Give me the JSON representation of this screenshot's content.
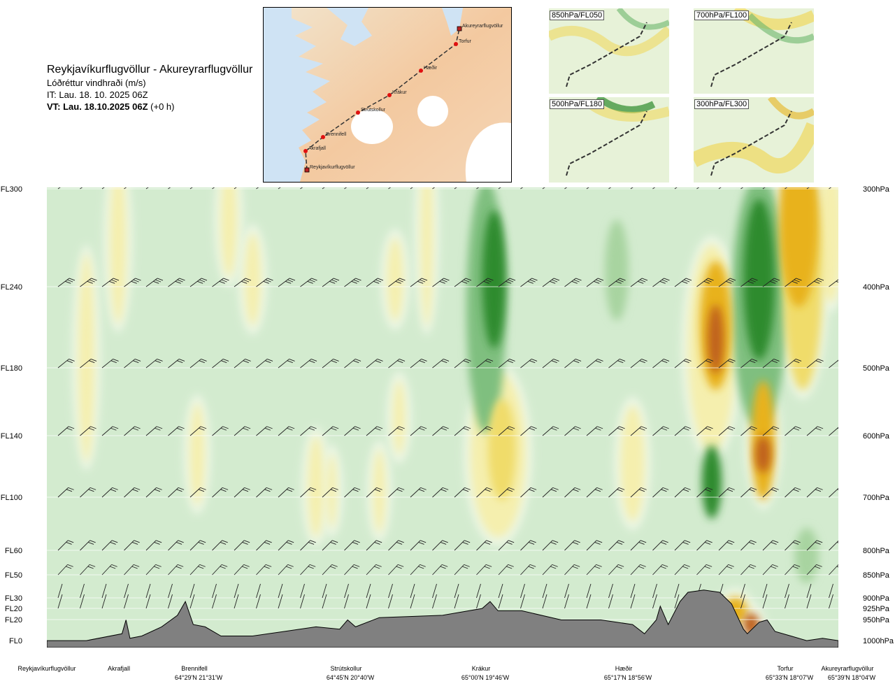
{
  "header": {
    "route": "Reykjavíkurflugvöllur - Akureyrarflugvöllur",
    "parameter": "Lóðréttur vindhraði (m/s)",
    "issue_time": "IT: Lau. 18. 10. 2025 06Z",
    "valid_time": "VT: Lau. 18.10.2025 06Z",
    "lead": "(+0 h)"
  },
  "route_map": {
    "waypoints": [
      {
        "name": "Akureyrarflugvöllur"
      },
      {
        "name": "Torfur"
      },
      {
        "name": "Hæðir"
      },
      {
        "name": "Krákur"
      },
      {
        "name": "Strútskollur"
      },
      {
        "name": "Brennifell"
      },
      {
        "name": "Akrafjall"
      },
      {
        "name": "Reykjavíkurflugvöllur"
      }
    ]
  },
  "thumbnails": [
    {
      "label": "850hPa/FL050"
    },
    {
      "label": "700hPa/FL100"
    },
    {
      "label": "500hPa/FL180"
    },
    {
      "label": "300hPa/FL300"
    }
  ],
  "chart_data": {
    "type": "heatmap",
    "title": "",
    "y_left_levels": [
      "FL300",
      "FL240",
      "FL180",
      "FL140",
      "FL100",
      "FL60",
      "FL50",
      "FL30",
      "FL20",
      "FL20",
      "FL0"
    ],
    "y_right_levels": [
      "300hPa",
      "400hPa",
      "500hPa",
      "600hPa",
      "700hPa",
      "800hPa",
      "850hPa",
      "900hPa",
      "925hPa",
      "950hPa",
      "1000hPa"
    ],
    "pressure_hpa": [
      300,
      400,
      500,
      600,
      700,
      800,
      850,
      900,
      925,
      950,
      1000
    ],
    "x_locations": [
      {
        "name": "Reykjavíkurflugvöllur",
        "coord": "",
        "dist": 0
      },
      {
        "name": "Akrafjall",
        "coord": "",
        "dist": 0.095
      },
      {
        "name": "Brennifell",
        "coord": "64°29'N 21°31'W",
        "dist": 0.19
      },
      {
        "name": "Strútskollur",
        "coord": "64°45'N 20°40'W",
        "dist": 0.38
      },
      {
        "name": "Krákur",
        "coord": "65°00'N 19°46'W",
        "dist": 0.57
      },
      {
        "name": "Hæðir",
        "coord": "65°17'N 18°56'W",
        "dist": 0.75
      },
      {
        "name": "Torfur",
        "coord": "65°33'N 18°07'W",
        "dist": 0.945
      },
      {
        "name": "Akureyrarflugvöllur",
        "coord": "65°39'N 18°04'W",
        "dist": 1.0
      }
    ],
    "palette": {
      "strong_down": "#2e8b2e",
      "mod_down": "#7fbf7f",
      "weak_down": "#a8d4a0",
      "background": "#d3ebcf",
      "near_zero": "#eef7e6",
      "weak_up": "#f5efae",
      "mod_up": "#f0dc6a",
      "strong_up": "#e8b21c",
      "very_strong_up": "#c0621a",
      "terrain": "#808080"
    },
    "cells": [
      {
        "x": 0.565,
        "y": 0.2,
        "w": 0.03,
        "h": 0.3,
        "v": -3
      },
      {
        "x": 0.555,
        "y": 0.26,
        "w": 0.05,
        "h": 0.55,
        "v": -2
      },
      {
        "x": 0.575,
        "y": 0.57,
        "w": 0.035,
        "h": 0.22,
        "v": 2
      },
      {
        "x": 0.57,
        "y": 0.58,
        "w": 0.07,
        "h": 0.36,
        "v": 1
      },
      {
        "x": 0.72,
        "y": 0.18,
        "w": 0.03,
        "h": 0.22,
        "v": -1
      },
      {
        "x": 0.74,
        "y": 0.6,
        "w": 0.03,
        "h": 0.25,
        "v": 1
      },
      {
        "x": 0.845,
        "y": 0.3,
        "w": 0.04,
        "h": 0.28,
        "v": 3
      },
      {
        "x": 0.845,
        "y": 0.33,
        "w": 0.02,
        "h": 0.15,
        "v": 4
      },
      {
        "x": 0.84,
        "y": 0.35,
        "w": 0.06,
        "h": 0.45,
        "v": 1
      },
      {
        "x": 0.9,
        "y": 0.2,
        "w": 0.04,
        "h": 0.35,
        "v": -3
      },
      {
        "x": 0.9,
        "y": 0.25,
        "w": 0.07,
        "h": 0.55,
        "v": -2
      },
      {
        "x": 0.905,
        "y": 0.55,
        "w": 0.03,
        "h": 0.26,
        "v": 3
      },
      {
        "x": 0.905,
        "y": 0.58,
        "w": 0.02,
        "h": 0.08,
        "v": 4
      },
      {
        "x": 0.84,
        "y": 0.64,
        "w": 0.025,
        "h": 0.16,
        "v": -3
      },
      {
        "x": 0.95,
        "y": 0.07,
        "w": 0.05,
        "h": 0.38,
        "v": 3
      },
      {
        "x": 0.955,
        "y": 0.2,
        "w": 0.05,
        "h": 0.48,
        "v": 2
      },
      {
        "x": 0.99,
        "y": 0.1,
        "w": 0.03,
        "h": 0.3,
        "v": 1
      },
      {
        "x": 0.05,
        "y": 0.37,
        "w": 0.02,
        "h": 0.45,
        "v": 1
      },
      {
        "x": 0.09,
        "y": 0.12,
        "w": 0.02,
        "h": 0.35,
        "v": 1
      },
      {
        "x": 0.19,
        "y": 0.58,
        "w": 0.018,
        "h": 0.22,
        "v": 1
      },
      {
        "x": 0.23,
        "y": 0.07,
        "w": 0.02,
        "h": 0.25,
        "v": 1
      },
      {
        "x": 0.26,
        "y": 0.2,
        "w": 0.02,
        "h": 0.2,
        "v": 1
      },
      {
        "x": 0.34,
        "y": 0.65,
        "w": 0.02,
        "h": 0.22,
        "v": 1
      },
      {
        "x": 0.36,
        "y": 0.66,
        "w": 0.012,
        "h": 0.16,
        "v": 1
      },
      {
        "x": 0.42,
        "y": 0.66,
        "w": 0.015,
        "h": 0.18,
        "v": 1
      },
      {
        "x": 0.44,
        "y": 0.2,
        "w": 0.02,
        "h": 0.18,
        "v": 1
      },
      {
        "x": 0.445,
        "y": 0.5,
        "w": 0.015,
        "h": 0.16,
        "v": 1
      },
      {
        "x": 0.48,
        "y": 0.1,
        "w": 0.015,
        "h": 0.4,
        "v": 1
      },
      {
        "x": 0.96,
        "y": 0.8,
        "w": 0.03,
        "h": 0.12,
        "v": -1
      },
      {
        "x": 0.89,
        "y": 0.95,
        "w": 0.02,
        "h": 0.05,
        "v": 4
      },
      {
        "x": 0.87,
        "y": 0.92,
        "w": 0.03,
        "h": 0.06,
        "v": 3
      }
    ]
  }
}
